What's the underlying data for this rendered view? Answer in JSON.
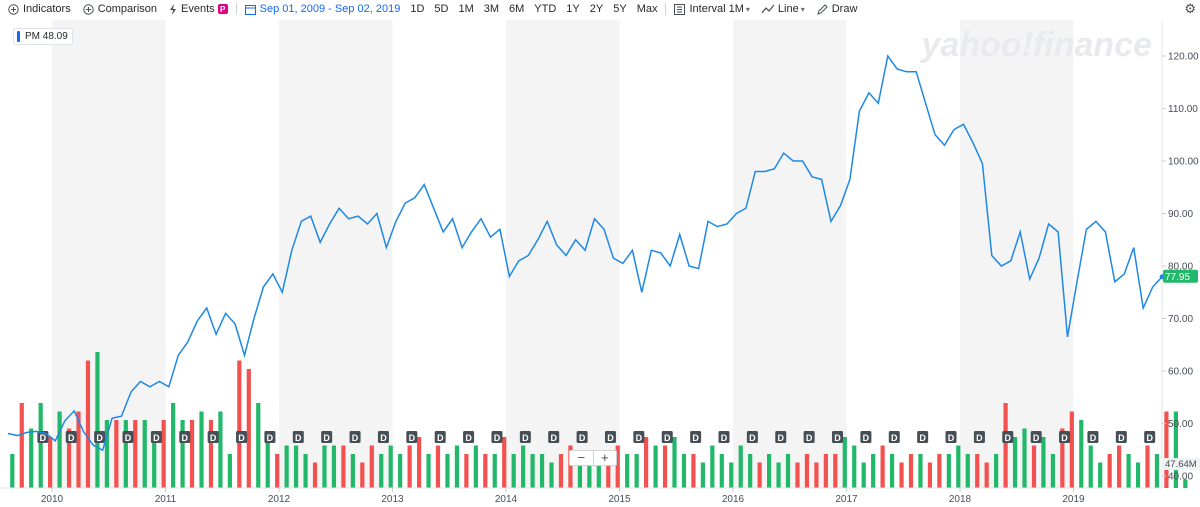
{
  "toolbar": {
    "indicators": "Indicators",
    "comparison": "Comparison",
    "events": "Events",
    "events_badge": "P",
    "date_range": "Sep 01, 2009 - Sep 02, 2019",
    "ranges": [
      "1D",
      "5D",
      "1M",
      "3M",
      "6M",
      "YTD",
      "1Y",
      "2Y",
      "5Y",
      "Max"
    ],
    "interval": "Interval",
    "interval_value": "1M",
    "chart_type": "Line",
    "draw": "Draw"
  },
  "watermark": "yahoo!finance",
  "legend": {
    "ticker": "PM",
    "value": "48.09"
  },
  "zoom": {
    "minus": "−",
    "plus": "+"
  },
  "colors": {
    "line": "#1e88e5",
    "up": "#21b869",
    "down": "#f2514f",
    "price_tag": "#21b869",
    "shade": "#f4f4f4"
  },
  "chart_data": {
    "type": "line",
    "title": "",
    "xlabel": "",
    "ylabel": "",
    "x_ticks": [
      "2010",
      "2011",
      "2012",
      "2013",
      "2014",
      "2015",
      "2016",
      "2017",
      "2018",
      "2019"
    ],
    "y_ticks": [
      "120.00",
      "110.00",
      "100.00",
      "90.00",
      "80.00",
      "70.00",
      "60.00",
      "50.00",
      "40.00"
    ],
    "ylim": [
      38,
      125
    ],
    "last_price": "77.95",
    "volume_label": "47.64M",
    "dividend_marker": "D",
    "grid": false,
    "series": [
      {
        "x_start": "2009-09",
        "frequency": "monthly",
        "values": [
          48.1,
          47.7,
          48.3,
          48.5,
          48.1,
          46.7,
          50.5,
          52.4,
          48.4,
          45.9,
          44.9,
          51.0,
          51.4,
          56.0,
          58.0,
          57.0,
          58.0,
          57.0,
          63.0,
          65.5,
          69.5,
          72.0,
          67.0,
          71.0,
          69.0,
          63.0,
          70.0,
          76.0,
          78.5,
          75.0,
          83.0,
          88.5,
          89.5,
          84.5,
          88.0,
          91.0,
          89.0,
          89.5,
          88.0,
          90.0,
          83.5,
          88.5,
          92.0,
          93.0,
          95.5,
          91.0,
          86.5,
          89.0,
          83.5,
          86.5,
          89.0,
          85.5,
          87.0,
          78.0,
          81.0,
          82.0,
          85.0,
          88.5,
          84.0,
          82.0,
          85.0,
          83.0,
          89.0,
          87.0,
          81.5,
          80.5,
          83.0,
          75.0,
          83.0,
          82.5,
          80.0,
          86.0,
          80.0,
          79.5,
          88.5,
          87.5,
          88.0,
          90.0,
          91.0,
          98.0,
          98.0,
          98.5,
          101.5,
          100.0,
          100.0,
          97.0,
          96.5,
          88.5,
          91.5,
          96.5,
          109.5,
          113.0,
          111.0,
          120.0,
          117.5,
          117.0,
          117.0,
          111.0,
          105.0,
          103.0,
          106.0,
          107.0,
          103.5,
          99.5,
          82.0,
          80.0,
          81.0,
          86.5,
          77.5,
          81.5,
          88.0,
          86.5,
          66.5,
          77.0,
          87.0,
          88.5,
          86.5,
          77.0,
          78.5,
          83.5,
          72.0,
          76.0,
          77.95
        ]
      }
    ],
    "volume": {
      "ylim": [
        0,
        100
      ],
      "values": [
        48,
        54,
        51,
        54,
        50,
        53,
        51,
        53,
        59,
        60,
        52,
        52,
        52,
        52,
        52,
        50,
        52,
        54,
        52,
        52,
        53,
        52,
        53,
        48,
        59,
        58,
        54,
        50,
        48,
        49,
        49,
        48,
        47,
        49,
        49,
        49,
        48,
        47,
        49,
        48,
        49,
        48,
        49,
        50,
        48,
        49,
        48,
        49,
        48,
        49,
        48,
        48,
        50,
        48,
        49,
        48,
        48,
        47,
        48,
        49,
        48,
        48,
        47,
        48,
        49,
        48,
        48,
        50,
        49,
        49,
        50,
        48,
        48,
        47,
        49,
        48,
        47,
        49,
        48,
        47,
        48,
        47,
        48,
        47,
        48,
        47,
        48,
        48,
        50,
        49,
        47,
        48,
        49,
        48,
        47,
        48,
        48,
        47,
        48,
        48,
        49,
        48,
        48,
        47,
        48,
        54,
        50,
        51,
        49,
        50,
        48,
        51,
        53,
        52,
        49,
        47,
        48,
        49,
        48,
        47,
        49,
        48,
        53,
        53,
        45
      ],
      "up": [
        1,
        0,
        1,
        1,
        0,
        1,
        0,
        0,
        0,
        1,
        1,
        0,
        1,
        0,
        1,
        1,
        0,
        1,
        1,
        0,
        1,
        0,
        1,
        1,
        0,
        0,
        1,
        1,
        0,
        1,
        1,
        1,
        0,
        1,
        1,
        0,
        1,
        0,
        0,
        1,
        1,
        1,
        0,
        0,
        1,
        0,
        1,
        1,
        0,
        1,
        0,
        1,
        0,
        1,
        1,
        1,
        1,
        1,
        0,
        0,
        1,
        1,
        1,
        0,
        0,
        1,
        1,
        0,
        1,
        0,
        1,
        1,
        0,
        1,
        1,
        1,
        1,
        1,
        1,
        0,
        1,
        1,
        1,
        0,
        0,
        0,
        0,
        0,
        1,
        1,
        1,
        1,
        0,
        1,
        0,
        0,
        1,
        0,
        0,
        1,
        1,
        1,
        0,
        0,
        1,
        0,
        1,
        1,
        0,
        1,
        1,
        0,
        0,
        1,
        1,
        1,
        0,
        0,
        1,
        1,
        0,
        1,
        0,
        1,
        1
      ],
      "dividend_idx": [
        3,
        6,
        9,
        12,
        15,
        18,
        21,
        24,
        27,
        30,
        33,
        36,
        39,
        42,
        45,
        48,
        51,
        54,
        57,
        60,
        63,
        66,
        69,
        72,
        75,
        78,
        81,
        84,
        87,
        90,
        93,
        96,
        99,
        102,
        105,
        108,
        111,
        114,
        117,
        120
      ]
    }
  }
}
